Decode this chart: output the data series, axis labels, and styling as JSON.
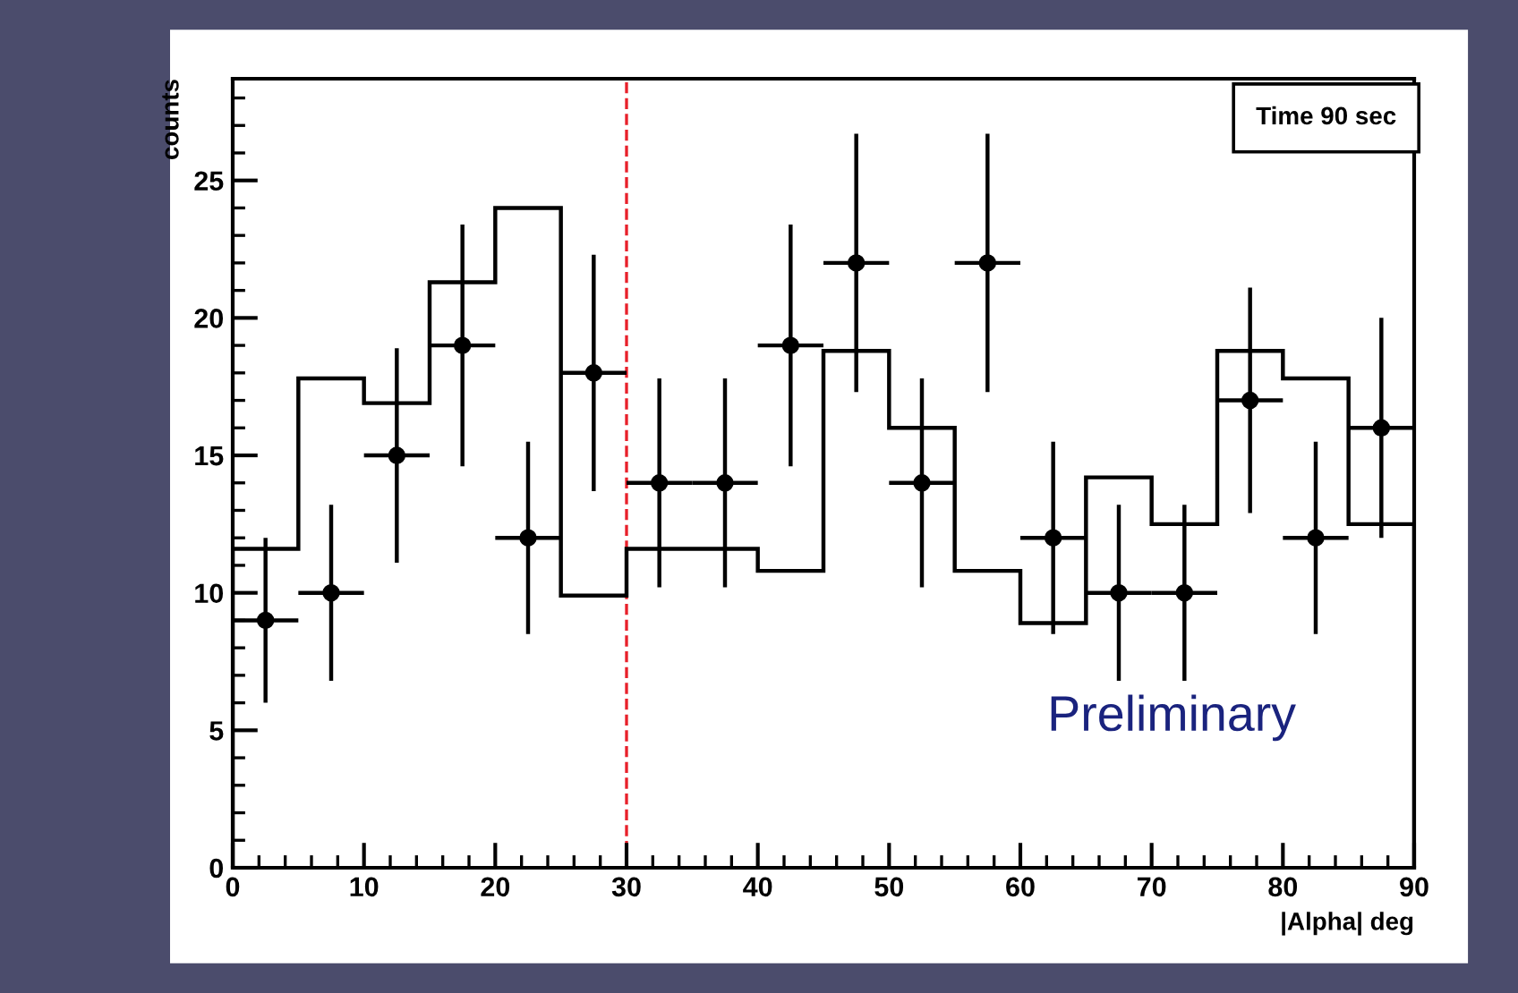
{
  "chart_data": {
    "type": "histogram",
    "xlabel": "|Alpha| deg",
    "ylabel": "counts",
    "bins": [
      0,
      5,
      10,
      15,
      20,
      25,
      30,
      35,
      40,
      45,
      50,
      55,
      60,
      65,
      70,
      75,
      80,
      85,
      90
    ],
    "values": [
      11.6,
      17.8,
      16.9,
      21.3,
      24,
      9.9,
      11.6,
      11.6,
      10.8,
      18.8,
      16,
      10.8,
      8.9,
      14.2,
      12.5,
      18.8,
      17.8,
      12.5
    ],
    "color": "#000000",
    "series": [
      {
        "type": "scatter",
        "color": "#000000",
        "marker": "circle",
        "x": [
          2.5,
          7.5,
          12.5,
          17.5,
          22.5,
          27.5,
          32.5,
          37.5,
          42.5,
          47.5,
          52.5,
          57.5,
          62.5,
          67.5,
          72.5,
          77.5,
          82.5,
          87.5
        ],
        "values": [
          9,
          10,
          15,
          19,
          12,
          18,
          14,
          14,
          19,
          22,
          14,
          22,
          12,
          10,
          10,
          17,
          12,
          16
        ],
        "errors": [
          3,
          3.2,
          3.9,
          4.4,
          3.5,
          4.3,
          3.8,
          3.8,
          4.4,
          4.7,
          3.8,
          4.7,
          3.5,
          3.2,
          3.2,
          4.1,
          3.5,
          4
        ],
        "xerrors": [
          2.5,
          2.5,
          2.5,
          2.5,
          2.5,
          2.5,
          2.5,
          2.5,
          2.5,
          2.5,
          2.5,
          2.5,
          2.5,
          2.5,
          2.5,
          2.5,
          2.5,
          2.5
        ]
      }
    ],
    "xlim": [
      0,
      90
    ],
    "xticks": [
      0,
      10,
      20,
      30,
      40,
      50,
      60,
      70,
      80,
      90
    ],
    "ylim": [
      0,
      28.7
    ],
    "yticks": [
      0,
      5,
      10,
      15,
      20,
      25
    ],
    "ref_lines": [
      {
        "axis": "x",
        "value": 30,
        "color": "#e8202a",
        "line_style": "dashed"
      }
    ],
    "annotations": [
      "Time 90 sec",
      "Preliminary"
    ],
    "grid": false
  }
}
